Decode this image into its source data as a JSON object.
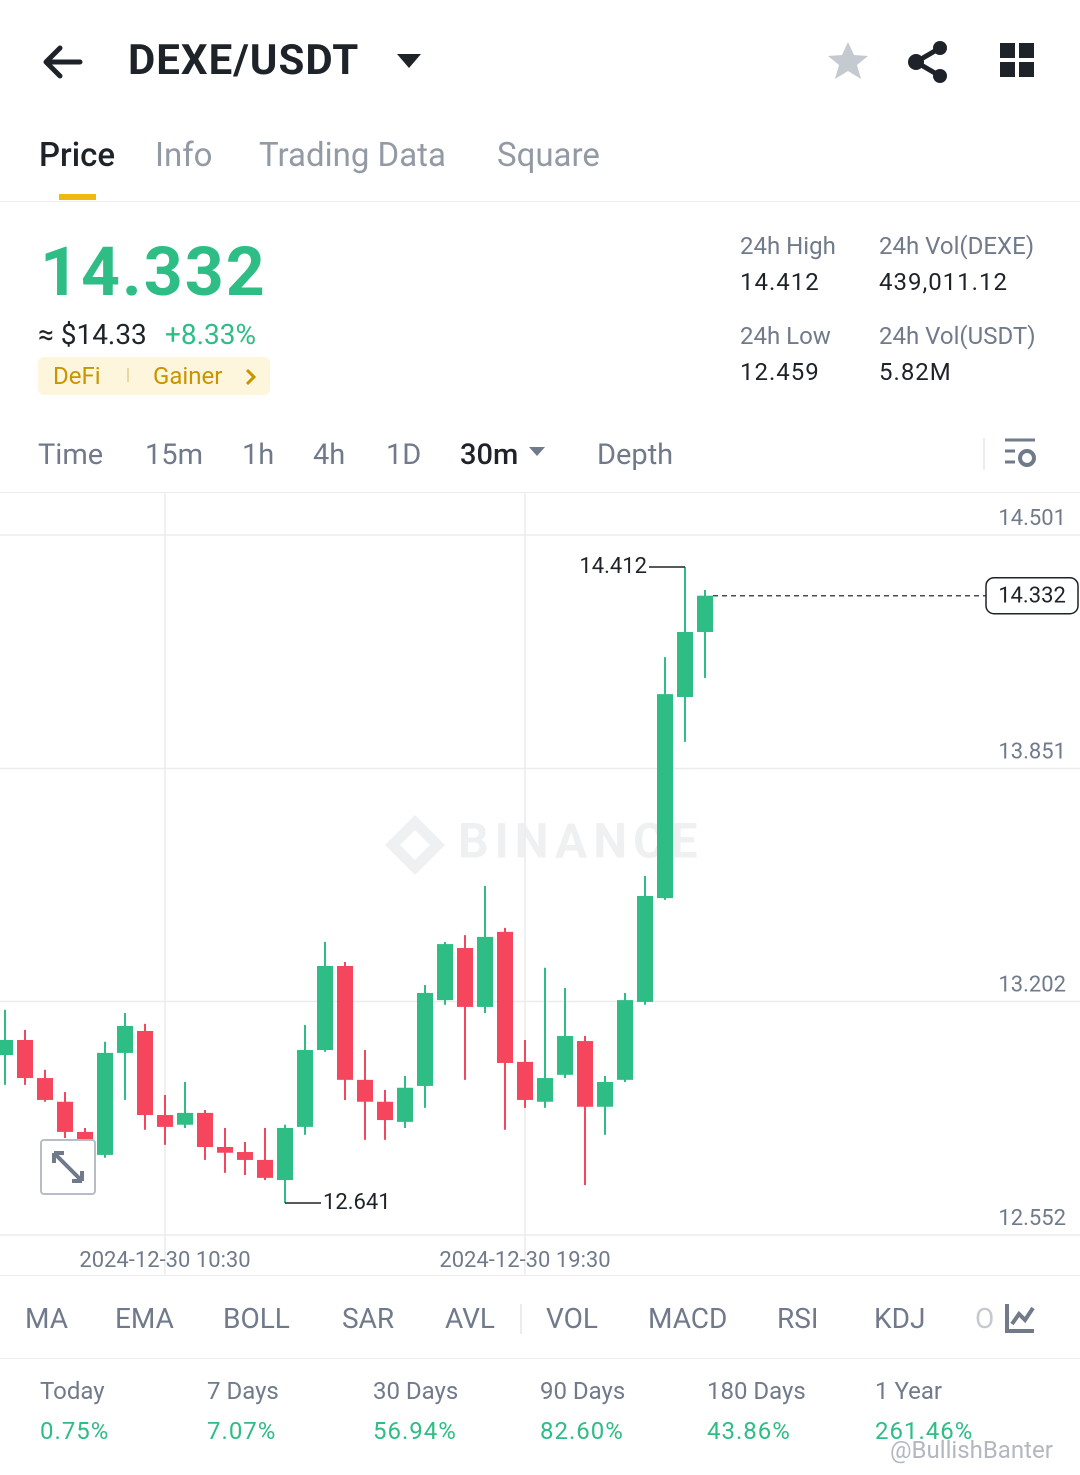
{
  "header": {
    "title": "DEXE/USDT"
  },
  "tabs": [
    "Price",
    "Info",
    "Trading Data",
    "Square"
  ],
  "ticker": {
    "price": "14.332",
    "usd": "≈ $14.33",
    "change": "+8.33%",
    "tags": [
      "DeFi",
      "Gainer"
    ]
  },
  "stats": [
    {
      "label": "24h High",
      "value": "14.412"
    },
    {
      "label": "24h Vol(DEXE)",
      "value": "439,011.12"
    },
    {
      "label": "24h Low",
      "value": "12.459"
    },
    {
      "label": "24h Vol(USDT)",
      "value": "5.82M"
    }
  ],
  "intervals": [
    "Time",
    "15m",
    "1h",
    "4h",
    "1D",
    "30m",
    "Depth"
  ],
  "chart_data": {
    "type": "candlestick",
    "watermark": "BINANCE",
    "categories": [
      null,
      null,
      null,
      null,
      null,
      null,
      null,
      null,
      "2024-12-30 10:30",
      null,
      null,
      null,
      null,
      null,
      null,
      null,
      null,
      null,
      null,
      null,
      null,
      null,
      null,
      null,
      null,
      null,
      "2024-12-30 19:30",
      null,
      null,
      null,
      null,
      null,
      null,
      null,
      null,
      null
    ],
    "open": [
      13.053,
      13.095,
      12.989,
      12.923,
      12.839,
      12.775,
      13.059,
      13.12,
      12.886,
      12.859,
      12.892,
      12.797,
      12.783,
      12.761,
      12.705,
      12.853,
      13.067,
      13.301,
      12.984,
      12.923,
      12.867,
      12.967,
      13.206,
      13.351,
      13.187,
      13.396,
      13.034,
      12.923,
      12.998,
      13.092,
      12.909,
      12.984,
      13.201,
      13.49,
      14.05,
      14.231
    ],
    "high": [
      13.179,
      13.123,
      13.012,
      12.95,
      12.85,
      13.09,
      13.17,
      13.14,
      12.942,
      12.978,
      12.9,
      12.85,
      12.811,
      12.85,
      12.859,
      13.137,
      13.368,
      13.312,
      13.067,
      12.956,
      12.995,
      13.248,
      13.368,
      13.387,
      13.524,
      13.407,
      13.095,
      13.296,
      13.24,
      13.106,
      12.995,
      13.226,
      13.552,
      14.161,
      14.412,
      14.348
    ],
    "low": [
      12.97,
      12.97,
      12.923,
      12.822,
      12.811,
      12.767,
      12.928,
      12.845,
      12.803,
      12.85,
      12.761,
      12.725,
      12.719,
      12.705,
      12.641,
      12.831,
      13.062,
      12.928,
      12.817,
      12.817,
      12.85,
      12.906,
      13.193,
      12.984,
      13.17,
      12.845,
      12.906,
      12.906,
      12.989,
      12.691,
      12.831,
      12.978,
      13.193,
      13.485,
      13.925,
      14.103
    ],
    "close": [
      13.095,
      12.989,
      12.928,
      12.839,
      12.817,
      13.059,
      13.134,
      12.886,
      12.853,
      12.892,
      12.797,
      12.781,
      12.761,
      12.711,
      12.85,
      13.067,
      13.301,
      12.984,
      12.923,
      12.872,
      12.962,
      13.226,
      13.362,
      13.187,
      13.382,
      13.031,
      12.928,
      12.989,
      13.106,
      12.909,
      12.978,
      13.206,
      13.496,
      14.058,
      14.231,
      14.332
    ],
    "up_color": "#2ebd85",
    "down_color": "#f6465d",
    "ylim": [
      12.552,
      14.501
    ],
    "yticks": [
      14.501,
      13.851,
      13.202,
      12.552
    ],
    "grid": true
  },
  "indicators": [
    "MA",
    "EMA",
    "BOLL",
    "SAR",
    "AVL",
    "VOL",
    "MACD",
    "RSI",
    "KDJ",
    "O"
  ],
  "performance": [
    {
      "period": "Today",
      "value": "0.75%"
    },
    {
      "period": "7 Days",
      "value": "7.07%"
    },
    {
      "period": "30 Days",
      "value": "56.94%"
    },
    {
      "period": "90 Days",
      "value": "82.60%"
    },
    {
      "period": "180 Days",
      "value": "43.86%"
    },
    {
      "period": "1 Year",
      "value": "261.46%"
    }
  ],
  "watermark": "@BullishBanter"
}
